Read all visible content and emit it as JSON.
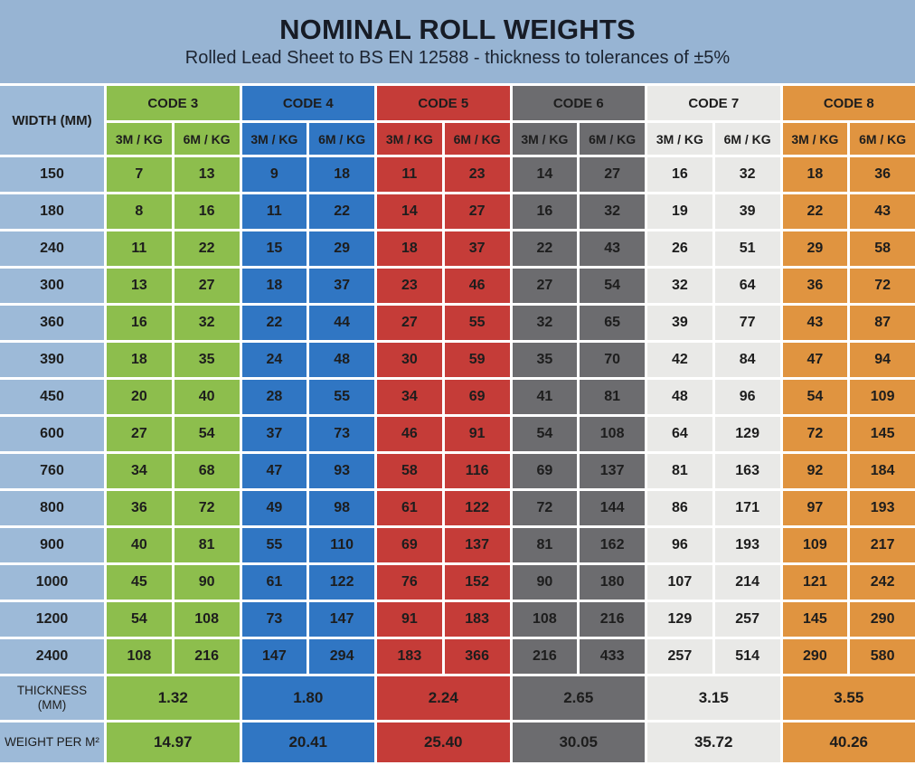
{
  "banner": {
    "title": "NOMINAL ROLL WEIGHTS",
    "subtitle": "Rolled Lead Sheet to BS EN 12588 - thickness to tolerances of ±5%",
    "background": "#97B4D3"
  },
  "table": {
    "width_header": "WIDTH (MM)",
    "width_column_color": "#9DBAD8",
    "gap_color": "#FFFFFF",
    "text_color": "#1D1D1D",
    "sub_headers": [
      "3M / KG",
      "6M / KG"
    ],
    "codes": [
      {
        "label": "CODE 3",
        "color": "#8DBE4D",
        "thickness": "1.32",
        "weight_per_m2": "14.97"
      },
      {
        "label": "CODE 4",
        "color": "#3076C3",
        "thickness": "1.80",
        "weight_per_m2": "20.41"
      },
      {
        "label": "CODE 5",
        "color": "#C53C38",
        "thickness": "2.24",
        "weight_per_m2": "25.40"
      },
      {
        "label": "CODE 6",
        "color": "#6C6C6F",
        "thickness": "2.65",
        "weight_per_m2": "30.05"
      },
      {
        "label": "CODE 7",
        "color": "#E9E9E7",
        "thickness": "3.15",
        "weight_per_m2": "35.72"
      },
      {
        "label": "CODE 8",
        "color": "#E09440",
        "thickness": "3.55",
        "weight_per_m2": "40.26"
      }
    ],
    "rows": [
      {
        "width": "150",
        "values": [
          7,
          13,
          9,
          18,
          11,
          23,
          14,
          27,
          16,
          32,
          18,
          36
        ]
      },
      {
        "width": "180",
        "values": [
          8,
          16,
          11,
          22,
          14,
          27,
          16,
          32,
          19,
          39,
          22,
          43
        ]
      },
      {
        "width": "240",
        "values": [
          11,
          22,
          15,
          29,
          18,
          37,
          22,
          43,
          26,
          51,
          29,
          58
        ]
      },
      {
        "width": "300",
        "values": [
          13,
          27,
          18,
          37,
          23,
          46,
          27,
          54,
          32,
          64,
          36,
          72
        ]
      },
      {
        "width": "360",
        "values": [
          16,
          32,
          22,
          44,
          27,
          55,
          32,
          65,
          39,
          77,
          43,
          87
        ]
      },
      {
        "width": "390",
        "values": [
          18,
          35,
          24,
          48,
          30,
          59,
          35,
          70,
          42,
          84,
          47,
          94
        ]
      },
      {
        "width": "450",
        "values": [
          20,
          40,
          28,
          55,
          34,
          69,
          41,
          81,
          48,
          96,
          54,
          109
        ]
      },
      {
        "width": "600",
        "values": [
          27,
          54,
          37,
          73,
          46,
          91,
          54,
          108,
          64,
          129,
          72,
          145
        ]
      },
      {
        "width": "760",
        "values": [
          34,
          68,
          47,
          93,
          58,
          116,
          69,
          137,
          81,
          163,
          92,
          184
        ]
      },
      {
        "width": "800",
        "values": [
          36,
          72,
          49,
          98,
          61,
          122,
          72,
          144,
          86,
          171,
          97,
          193
        ]
      },
      {
        "width": "900",
        "values": [
          40,
          81,
          55,
          110,
          69,
          137,
          81,
          162,
          96,
          193,
          109,
          217
        ]
      },
      {
        "width": "1000",
        "values": [
          45,
          90,
          61,
          122,
          76,
          152,
          90,
          180,
          107,
          214,
          121,
          242
        ]
      },
      {
        "width": "1200",
        "values": [
          54,
          108,
          73,
          147,
          91,
          183,
          108,
          216,
          129,
          257,
          145,
          290
        ]
      },
      {
        "width": "2400",
        "values": [
          108,
          216,
          147,
          294,
          183,
          366,
          216,
          433,
          257,
          514,
          290,
          580
        ]
      }
    ],
    "footer": {
      "thickness_label": "THICKNESS (MM)",
      "weight_label": "WEIGHT PER M²"
    }
  }
}
